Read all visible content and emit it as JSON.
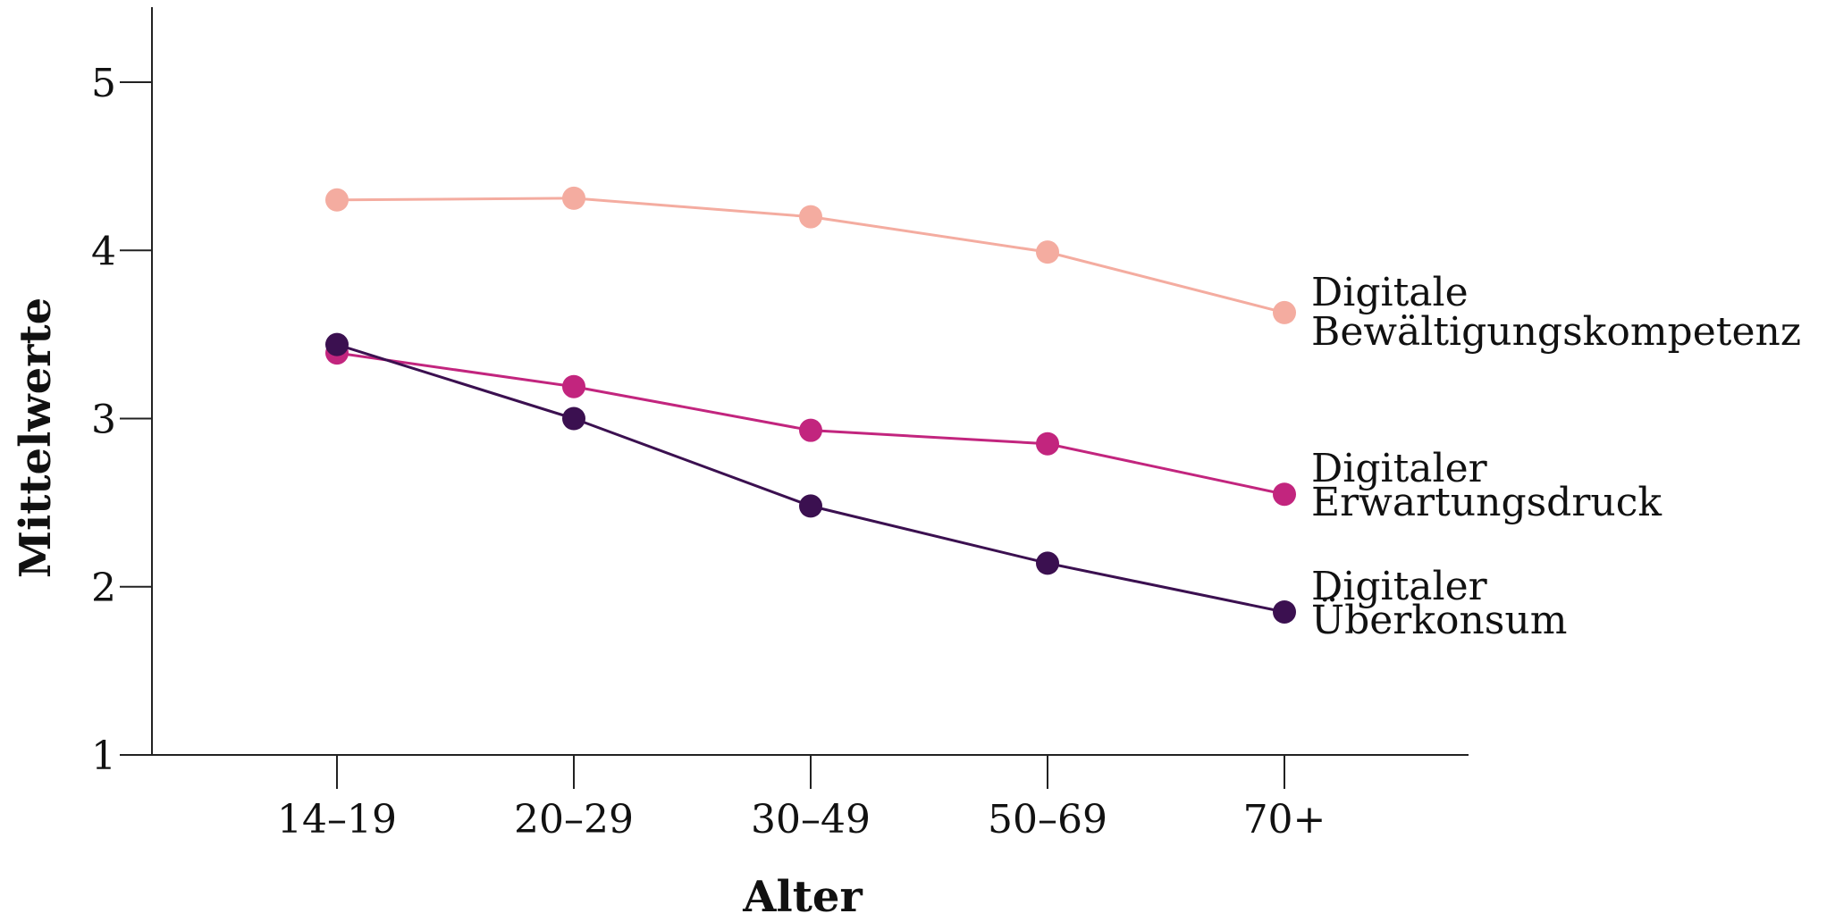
{
  "chart_data": {
    "type": "line",
    "title": "",
    "xlabel": "Alter",
    "ylabel": "Mittelwerte",
    "categories": [
      "14–19",
      "20–29",
      "30–49",
      "50–69",
      "70+"
    ],
    "yticks": [
      "1",
      "2",
      "3",
      "4",
      "5"
    ],
    "ylim": [
      1,
      5.4
    ],
    "grid": false,
    "legend": "direct labels at line ends",
    "series": [
      {
        "key": "bewaeltigung",
        "label_lines": [
          "Digitale",
          "Bewältigungskompetenz"
        ],
        "color": "#f4aca0",
        "values": [
          4.3,
          4.31,
          4.2,
          3.99,
          3.63
        ]
      },
      {
        "key": "erwartungsdruck",
        "label_lines": [
          "Digitaler",
          "Erwartungsdruck"
        ],
        "color": "#c2257e",
        "values": [
          3.39,
          3.19,
          2.93,
          2.85,
          2.55
        ]
      },
      {
        "key": "ueberkonsum",
        "label_lines": [
          "Digitaler",
          "Überkonsum"
        ],
        "color": "#3b1050",
        "values": [
          3.44,
          3.0,
          2.48,
          2.14,
          1.85
        ]
      }
    ]
  }
}
